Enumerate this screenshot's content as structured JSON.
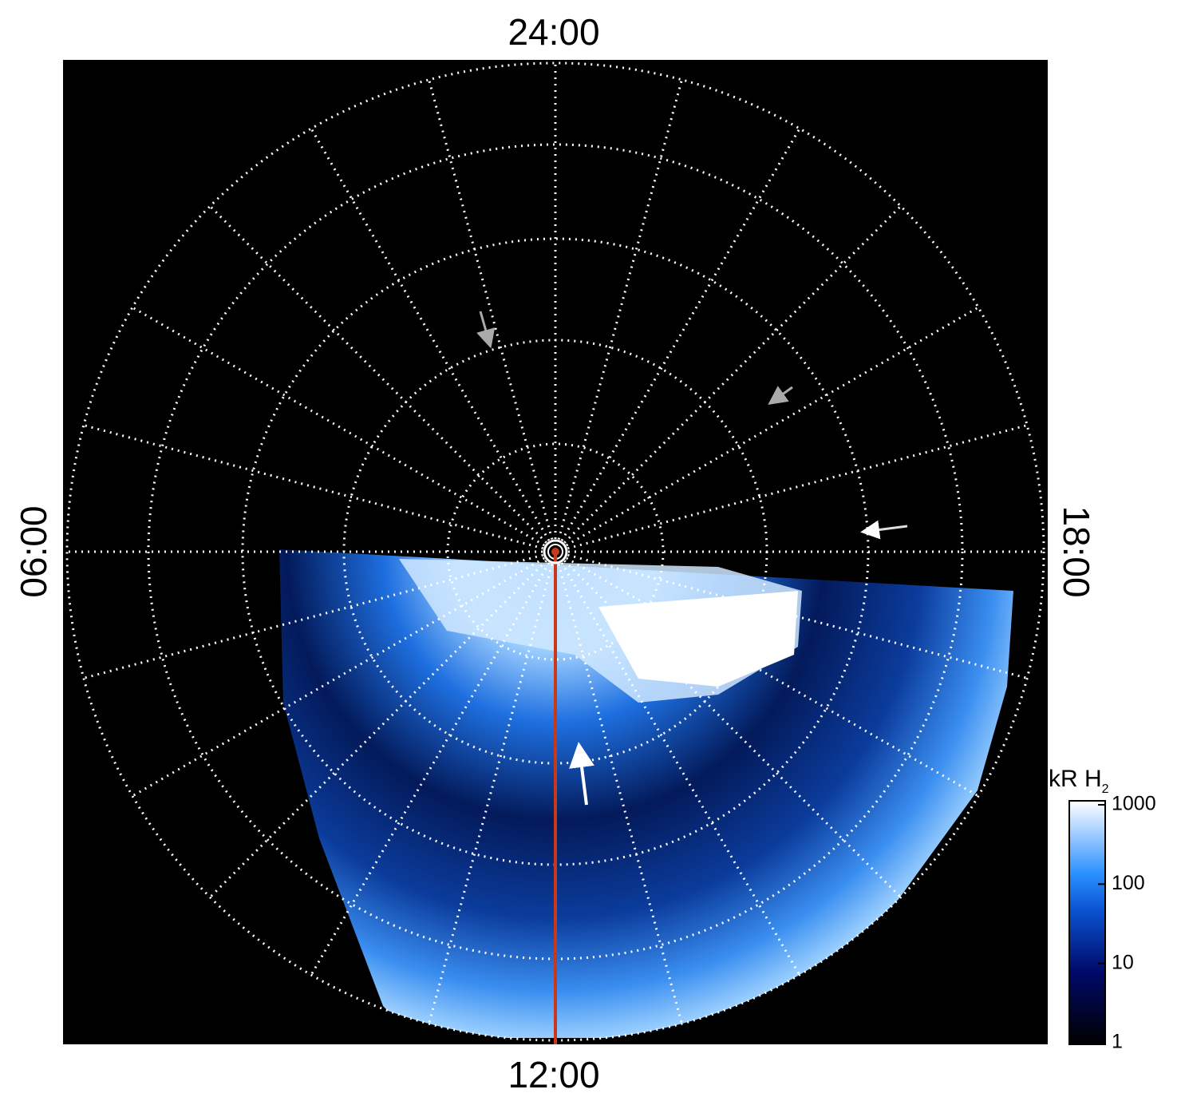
{
  "labels": {
    "top": "24:00",
    "bottom": "12:00",
    "left": "06:00",
    "right": "18:00"
  },
  "colorbar": {
    "title": "kR H",
    "title_sub": "2",
    "lim": [
      1,
      1000
    ],
    "ticks": [
      1,
      10,
      100,
      1000
    ],
    "log": true
  }
}
